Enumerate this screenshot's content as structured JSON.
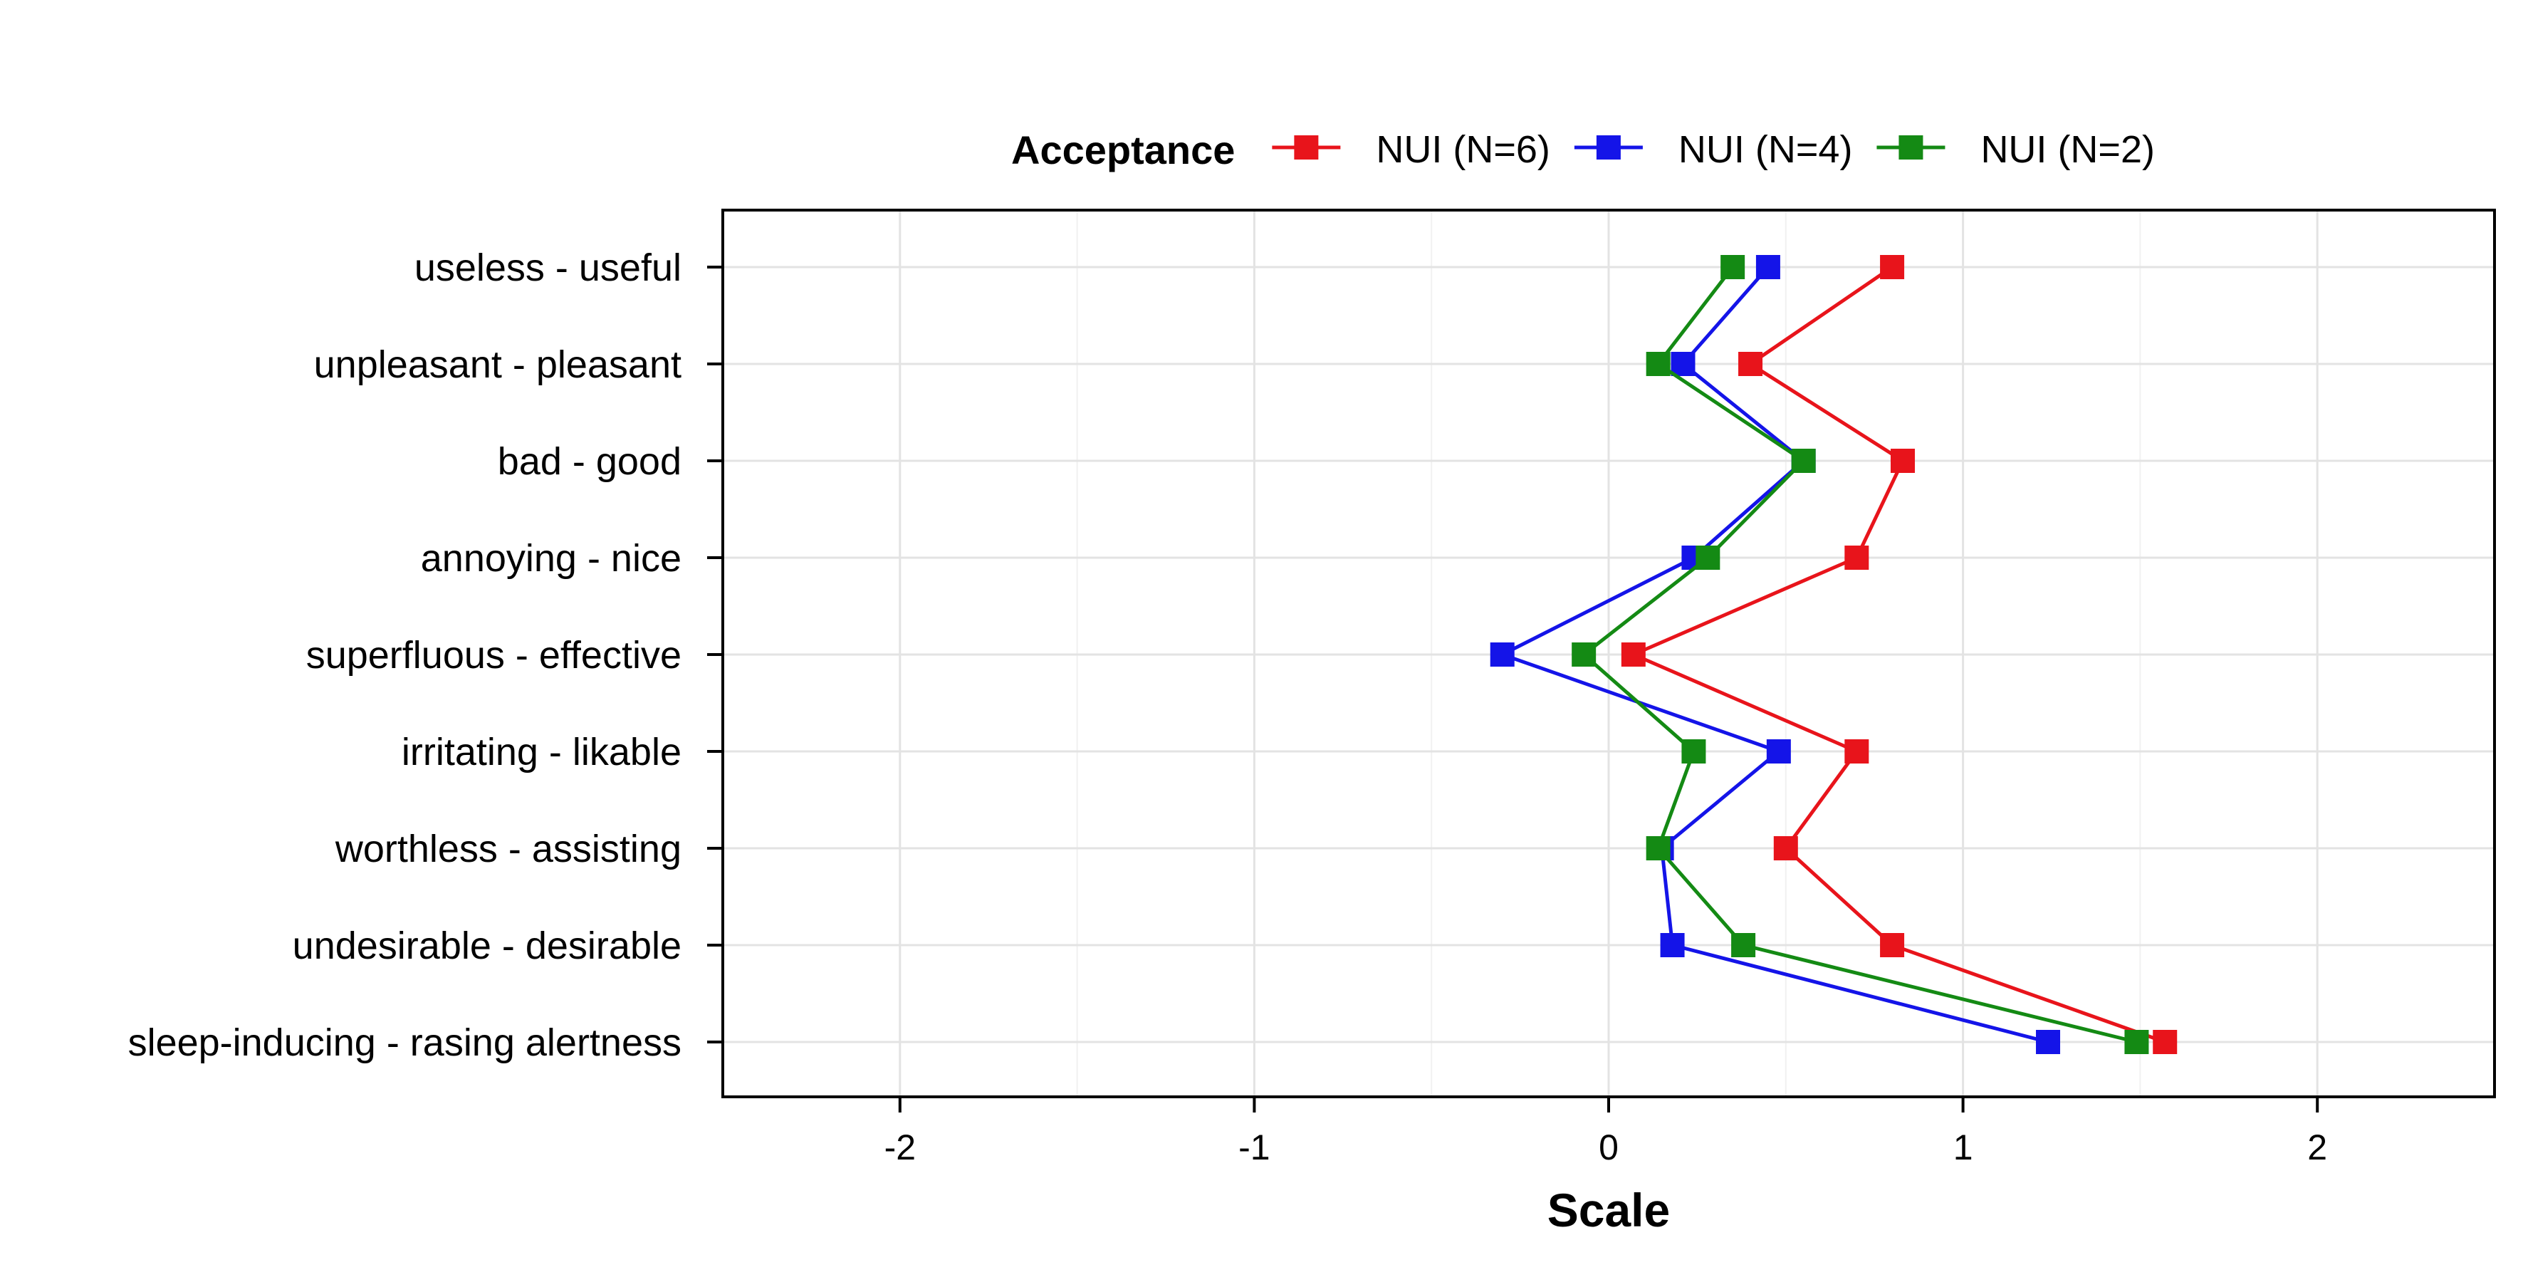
{
  "chart_data": {
    "type": "line",
    "orientation": "horizontal",
    "legend": {
      "title": "Acceptance",
      "position": "top"
    },
    "xlabel": "Scale",
    "ylabel": "",
    "xlim": [
      -2.5,
      2.5
    ],
    "xticks": [
      -2,
      -1,
      0,
      1,
      2
    ],
    "grid": true,
    "categories": [
      "useless - useful",
      "unpleasant - pleasant",
      "bad - good",
      "annoying - nice",
      "superfluous - effective",
      "irritating - likable",
      "worthless - assisting",
      "undesirable - desirable",
      "sleep-inducing - rasing alertness"
    ],
    "series": [
      {
        "name": "NUI (N=6)",
        "color": "#e8141b",
        "marker": "square",
        "values": [
          0.8,
          0.4,
          0.83,
          0.7,
          0.07,
          0.7,
          0.5,
          0.8,
          1.57
        ]
      },
      {
        "name": "NUI (N=4)",
        "color": "#1414e8",
        "marker": "square",
        "values": [
          0.45,
          0.21,
          0.55,
          0.24,
          -0.3,
          0.48,
          0.15,
          0.18,
          1.24
        ]
      },
      {
        "name": "NUI (N=2)",
        "color": "#148a14",
        "marker": "square",
        "values": [
          0.35,
          0.14,
          0.55,
          0.28,
          -0.07,
          0.24,
          0.14,
          0.38,
          1.49
        ]
      }
    ]
  }
}
